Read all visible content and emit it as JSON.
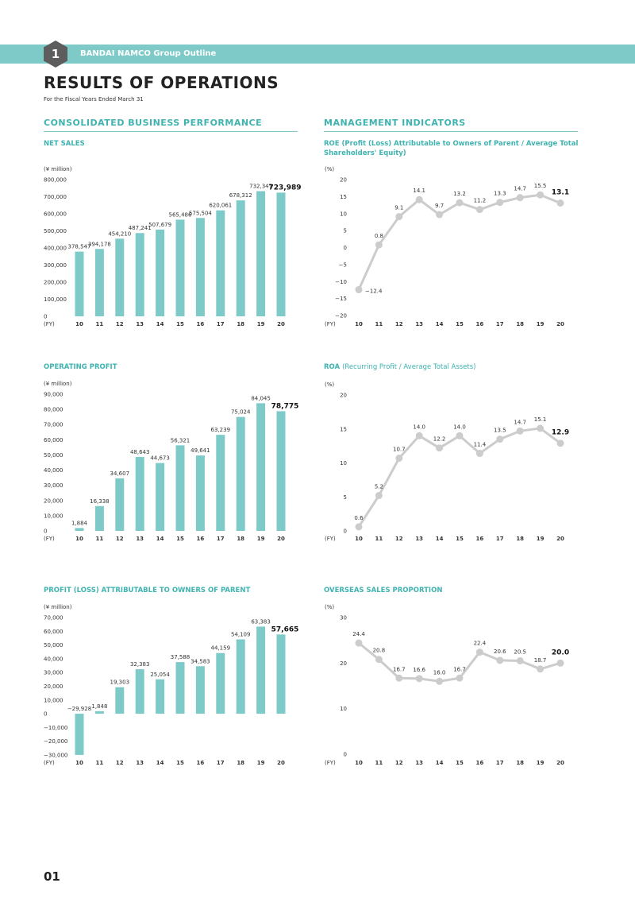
{
  "header": {
    "section_number": "1",
    "section_title": "BANDAI NAMCO Group Outline"
  },
  "title": "RESULTS OF OPERATIONS",
  "subtitle": "For the Fiscal Years Ended March 31",
  "sections": {
    "left": "CONSOLIDATED BUSINESS PERFORMANCE",
    "right": "MANAGEMENT INDICATORS"
  },
  "page_number": "01",
  "colors": {
    "accent": "#3fb3b0",
    "bar": "#7ecac8",
    "line": "#cccccc",
    "band": "#7ecac8"
  },
  "chart_data": [
    {
      "id": "net-sales",
      "type": "bar",
      "title": "NET SALES",
      "unit": "(¥ million)",
      "xlabel": "(FY)",
      "categories": [
        "10",
        "11",
        "12",
        "13",
        "14",
        "15",
        "16",
        "17",
        "18",
        "19",
        "20"
      ],
      "values": [
        378547,
        394178,
        454210,
        487241,
        507679,
        565486,
        575504,
        620061,
        678312,
        732347,
        723989
      ],
      "ylim": [
        0,
        800000
      ],
      "yticks": [
        0,
        100000,
        200000,
        300000,
        400000,
        500000,
        600000,
        700000,
        800000
      ]
    },
    {
      "id": "operating-profit",
      "type": "bar",
      "title": "OPERATING PROFIT",
      "unit": "(¥ million)",
      "xlabel": "(FY)",
      "categories": [
        "10",
        "11",
        "12",
        "13",
        "14",
        "15",
        "16",
        "17",
        "18",
        "19",
        "20"
      ],
      "values": [
        1884,
        16338,
        34607,
        48643,
        44673,
        56321,
        49641,
        63239,
        75024,
        84045,
        78775
      ],
      "ylim": [
        0,
        90000
      ],
      "yticks": [
        0,
        10000,
        20000,
        30000,
        40000,
        50000,
        60000,
        70000,
        80000,
        90000
      ]
    },
    {
      "id": "profit-parent",
      "type": "bar",
      "title": "PROFIT (LOSS) ATTRIBUTABLE TO OWNERS OF PARENT",
      "unit": "(¥ million)",
      "xlabel": "(FY)",
      "categories": [
        "10",
        "11",
        "12",
        "13",
        "14",
        "15",
        "16",
        "17",
        "18",
        "19",
        "20"
      ],
      "values": [
        -29928,
        1848,
        19303,
        32383,
        25054,
        37588,
        34583,
        44159,
        54109,
        63383,
        57665
      ],
      "ylim": [
        -30000,
        70000
      ],
      "yticks": [
        -30000,
        -20000,
        -10000,
        0,
        10000,
        20000,
        30000,
        40000,
        50000,
        60000,
        70000
      ]
    },
    {
      "id": "roe",
      "type": "line",
      "title": "ROE",
      "title_detail": "(Profit (Loss) Attributable to Owners of Parent / Average Total Shareholders' Equity)",
      "unit": "(%)",
      "xlabel": "(FY)",
      "categories": [
        "10",
        "11",
        "12",
        "13",
        "14",
        "15",
        "16",
        "17",
        "18",
        "19",
        "20"
      ],
      "values": [
        -12.4,
        0.8,
        9.1,
        14.1,
        9.7,
        13.2,
        11.2,
        13.3,
        14.7,
        15.5,
        13.1
      ],
      "ylim": [
        -20,
        20
      ],
      "yticks": [
        -20,
        -15,
        -10,
        -5,
        0,
        5,
        10,
        15,
        20
      ]
    },
    {
      "id": "roa",
      "type": "line",
      "title": "ROA",
      "title_detail": "(Recurring Profit / Average Total Assets)",
      "unit": "(%)",
      "xlabel": "(FY)",
      "categories": [
        "10",
        "11",
        "12",
        "13",
        "14",
        "15",
        "16",
        "17",
        "18",
        "19",
        "20"
      ],
      "values": [
        0.6,
        5.2,
        10.7,
        14.0,
        12.2,
        14.0,
        11.4,
        13.5,
        14.7,
        15.1,
        12.9
      ],
      "ylim": [
        0,
        20
      ],
      "yticks": [
        0,
        5,
        10,
        15,
        20
      ]
    },
    {
      "id": "overseas",
      "type": "line",
      "title": "OVERSEAS SALES PROPORTION",
      "unit": "(%)",
      "xlabel": "(FY)",
      "categories": [
        "10",
        "11",
        "12",
        "13",
        "14",
        "15",
        "16",
        "17",
        "18",
        "19",
        "20"
      ],
      "values": [
        24.4,
        20.8,
        16.7,
        16.6,
        16.0,
        16.7,
        22.4,
        20.6,
        20.5,
        18.7,
        20.0
      ],
      "ylim": [
        0,
        30
      ],
      "yticks": [
        0,
        10,
        20,
        30
      ]
    }
  ]
}
